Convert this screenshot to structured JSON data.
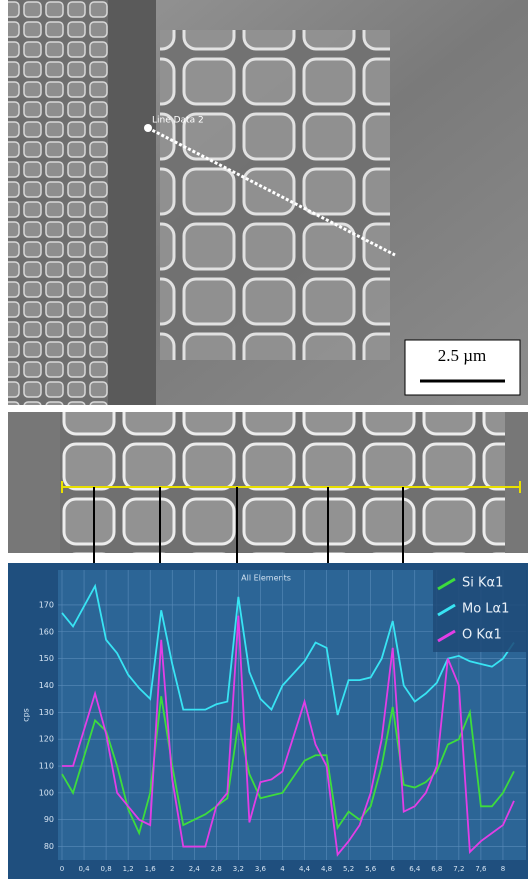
{
  "top_image": {
    "line_label": "Line Data 2",
    "scale_bar": "2.5 µm"
  },
  "chart_data": {
    "type": "line",
    "title": "All Elements",
    "y_label": "cps",
    "x": [
      0,
      0.2,
      0.6,
      0.8,
      1.0,
      1.2,
      1.4,
      1.6,
      1.8,
      2.0,
      2.2,
      2.6,
      2.8,
      3.0,
      3.2,
      3.4,
      3.6,
      3.8,
      4.0,
      4.4,
      4.6,
      4.8,
      5.0,
      5.2,
      5.4,
      5.6,
      5.8,
      6.0,
      6.2,
      6.4,
      6.6,
      6.8,
      7.0,
      7.2,
      7.4,
      7.6,
      7.8,
      8.0,
      8.2
    ],
    "series": [
      {
        "name": "Si Kα1",
        "color": "#3ddc3d",
        "values": [
          107,
          100,
          127,
          123,
          110,
          94,
          85,
          100,
          136,
          110,
          88,
          92,
          95,
          98,
          126,
          107,
          98,
          99,
          100,
          112,
          114,
          114,
          87,
          93,
          90,
          95,
          110,
          132,
          103,
          102,
          104,
          108,
          118,
          120,
          130,
          95,
          95,
          100,
          108
        ]
      },
      {
        "name": "Mo Lα1",
        "color": "#38e4f4",
        "values": [
          167,
          162,
          177,
          157,
          152,
          144,
          139,
          135,
          168,
          148,
          131,
          131,
          133,
          134,
          173,
          145,
          135,
          131,
          140,
          149,
          156,
          154,
          129,
          142,
          142,
          143,
          150,
          164,
          140,
          134,
          137,
          141,
          150,
          151,
          149,
          148,
          147,
          150,
          156
        ]
      },
      {
        "name": "O Kα1",
        "color": "#e23ee6",
        "values": [
          110,
          110,
          137,
          122,
          100,
          95,
          90,
          88,
          157,
          105,
          80,
          80,
          95,
          100,
          166,
          89,
          104,
          105,
          108,
          134,
          118,
          110,
          77,
          82,
          88,
          100,
          120,
          154,
          93,
          95,
          100,
          110,
          150,
          140,
          78,
          82,
          85,
          88,
          97
        ]
      }
    ],
    "xlim": [
      0,
      8.4
    ],
    "ylim": [
      75,
      183
    ],
    "xticks": [
      0,
      {
        "value": 0.4,
        "label": "0,4"
      },
      {
        "value": 0.8,
        "label": "0,8"
      },
      {
        "value": 1.2,
        "label": "1,2"
      },
      {
        "value": 1.6,
        "label": "1,6"
      },
      2,
      {
        "value": 2.4,
        "label": "2,4"
      },
      {
        "value": 2.8,
        "label": "2,8"
      },
      {
        "value": 3.2,
        "label": "3,2"
      },
      {
        "value": 3.6,
        "label": "3,6"
      },
      4,
      {
        "value": 4.4,
        "label": "4,4"
      },
      {
        "value": 4.8,
        "label": "4,8"
      },
      {
        "value": 5.2,
        "label": "5,2"
      },
      {
        "value": 5.6,
        "label": "5,6"
      },
      6,
      {
        "value": 6.4,
        "label": "6,4"
      },
      {
        "value": 6.8,
        "label": "6,8"
      },
      {
        "value": 7.2,
        "label": "7,2"
      },
      {
        "value": 7.6,
        "label": "7,6"
      },
      8
    ],
    "yticks": [
      80,
      90,
      100,
      110,
      120,
      130,
      140,
      150,
      160,
      170
    ],
    "grid": true,
    "legend": "upper right"
  }
}
